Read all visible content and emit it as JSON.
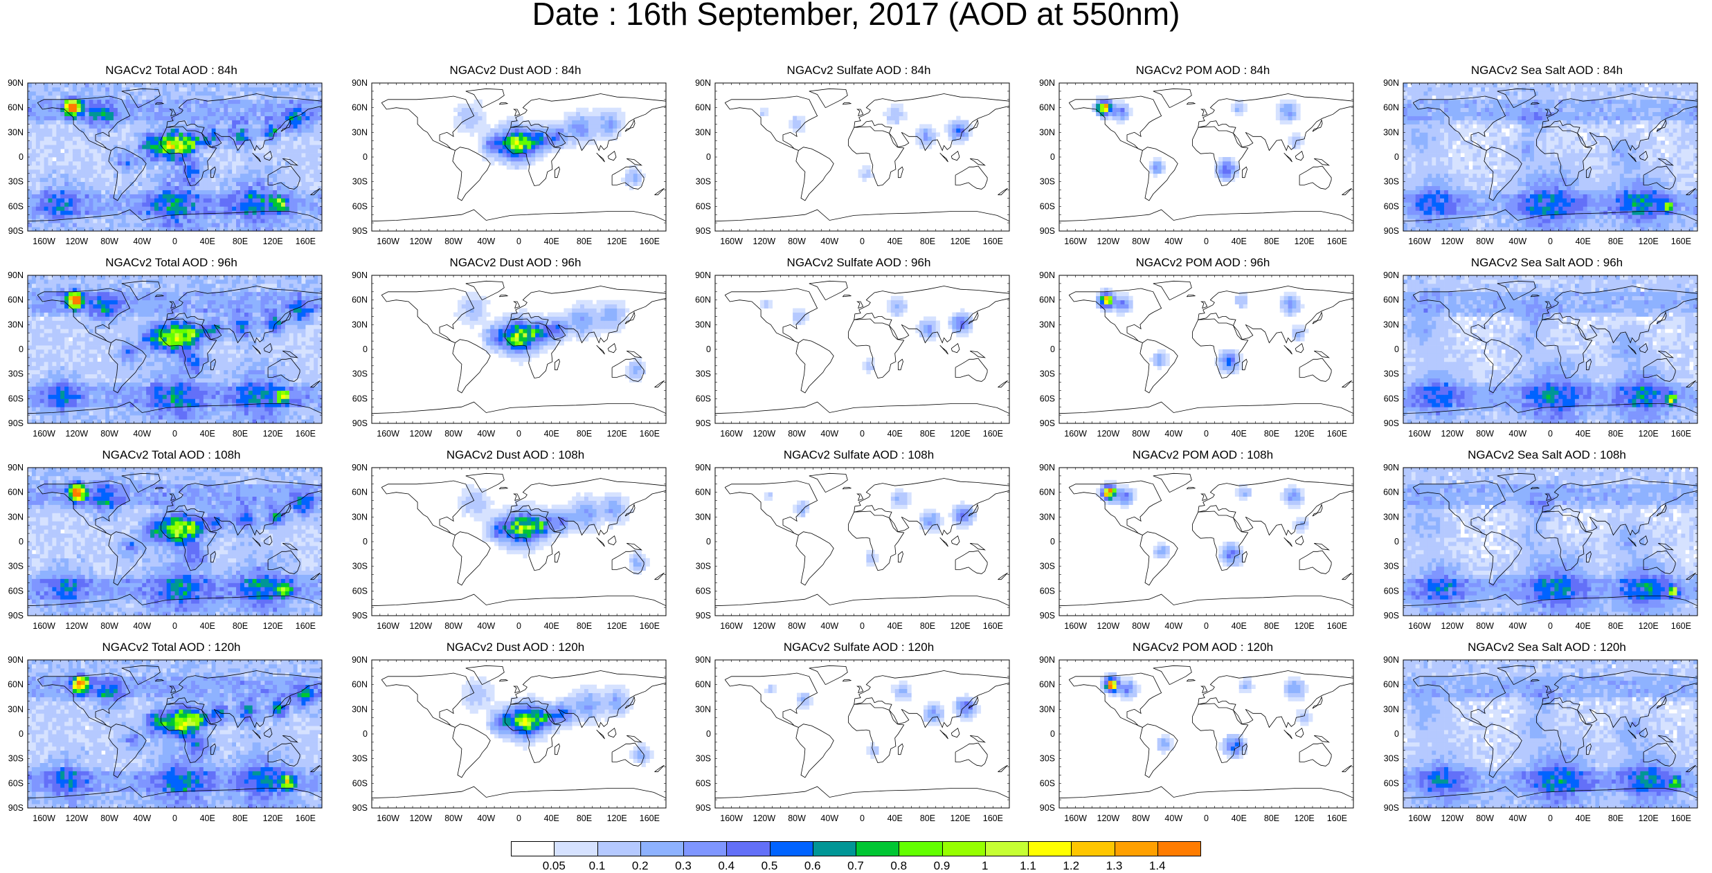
{
  "title": "Date : 16th September, 2017 (AOD at 550nm)",
  "panel_titles": [
    [
      "NGACv2 Total AOD : 84h",
      "NGACv2 Dust AOD : 84h",
      "NGACv2 Sulfate AOD : 84h",
      "NGACv2 POM AOD : 84h",
      "NGACv2 Sea Salt AOD : 84h"
    ],
    [
      "NGACv2 Total AOD : 96h",
      "NGACv2 Dust AOD : 96h",
      "NGACv2 Sulfate AOD : 96h",
      "NGACv2 POM AOD : 96h",
      "NGACv2 Sea Salt AOD : 96h"
    ],
    [
      "NGACv2 Total AOD : 108h",
      "NGACv2 Dust AOD : 108h",
      "NGACv2 Sulfate AOD : 108h",
      "NGACv2 POM AOD : 108h",
      "NGACv2 Sea Salt AOD : 108h"
    ],
    [
      "NGACv2 Total AOD : 120h",
      "NGACv2 Dust AOD : 120h",
      "NGACv2 Sulfate AOD : 120h",
      "NGACv2 POM AOD : 120h",
      "NGACv2 Sea Salt  AOD : 120h"
    ]
  ],
  "lat_labels": [
    "90N",
    "60N",
    "30N",
    "0",
    "30S",
    "60S",
    "90S"
  ],
  "lon_labels": [
    "160W",
    "120W",
    "80W",
    "40W",
    "0",
    "40E",
    "80E",
    "120E",
    "160E"
  ],
  "colorbar": {
    "colors": [
      "#ffffff",
      "#d6e2ff",
      "#b5c9ff",
      "#8eb2ff",
      "#7f96ff",
      "#6370f8",
      "#0063ff",
      "#009696",
      "#00c633",
      "#63ff00",
      "#96ff00",
      "#c6ff33",
      "#ffff00",
      "#ffc600",
      "#ffa000",
      "#ff7c00",
      "#ff1900"
    ],
    "labels": [
      "0.05",
      "0.1",
      "0.2",
      "0.3",
      "0.4",
      "0.5",
      "0.6",
      "0.7",
      "0.8",
      "0.9",
      "1",
      "1.1",
      "1.2",
      "1.3",
      "1.4"
    ]
  }
}
